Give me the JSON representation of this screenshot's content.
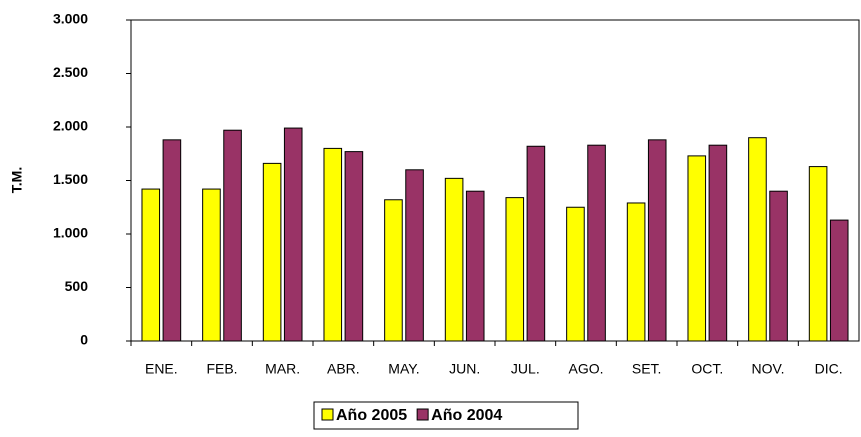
{
  "chart_data": {
    "type": "bar",
    "y_label": "T.M.",
    "categories": [
      "ENE.",
      "FEB.",
      "MAR.",
      "ABR.",
      "MAY.",
      "JUN.",
      "JUL.",
      "AGO.",
      "SET.",
      "OCT.",
      "NOV.",
      "DIC."
    ],
    "series": [
      {
        "name": "Año 2005",
        "color": "#ffff00",
        "values": [
          1420,
          1420,
          1660,
          1800,
          1320,
          1520,
          1340,
          1250,
          1290,
          1730,
          1900,
          1630
        ]
      },
      {
        "name": "Año 2004",
        "color": "#993366",
        "values": [
          1880,
          1970,
          1990,
          1770,
          1600,
          1400,
          1820,
          1830,
          1880,
          1830,
          1400,
          1130
        ]
      }
    ],
    "ylim": [
      0,
      3000
    ],
    "yticks": [
      0,
      500,
      {
        "value": 1000,
        "label": "1.000"
      },
      {
        "value": 1500,
        "label": "1.500"
      },
      {
        "value": 2000,
        "label": "2.000"
      },
      {
        "value": 2500,
        "label": "2.500"
      },
      {
        "value": 3000,
        "label": "3.000"
      }
    ],
    "grid": false,
    "legend": "bottom"
  }
}
